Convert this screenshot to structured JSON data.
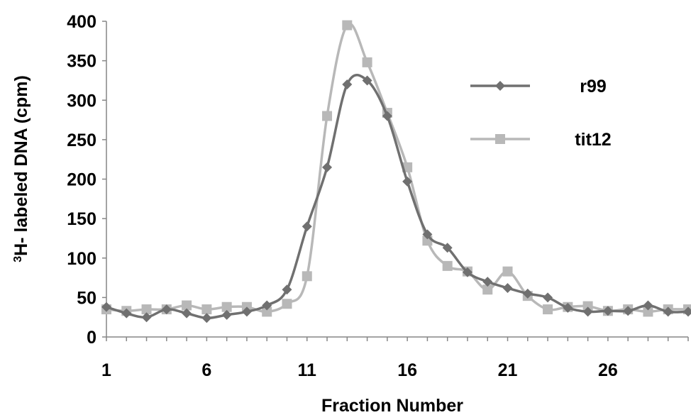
{
  "chart_data": {
    "type": "line",
    "xlabel": "Fraction Number",
    "ylabel_prefix": "3",
    "ylabel_main": "H- labeled DNA (cpm)",
    "x_ticks": [
      "1",
      "6",
      "11",
      "16",
      "21",
      "26"
    ],
    "y_ticks": [
      "0",
      "50",
      "100",
      "150",
      "200",
      "250",
      "300",
      "350",
      "400"
    ],
    "xlim": [
      1,
      30
    ],
    "ylim": [
      0,
      400
    ],
    "legend_position": "top-right",
    "series": [
      {
        "name": "r99",
        "color": "#707070",
        "marker": "diamond",
        "x": [
          1,
          2,
          3,
          4,
          5,
          6,
          7,
          8,
          9,
          10,
          11,
          12,
          13,
          14,
          15,
          16,
          17,
          18,
          19,
          20,
          21,
          22,
          23,
          24,
          25,
          26,
          27,
          28,
          29,
          30
        ],
        "y": [
          38,
          30,
          25,
          35,
          30,
          24,
          28,
          32,
          40,
          60,
          140,
          215,
          320,
          325,
          280,
          197,
          130,
          113,
          82,
          70,
          62,
          55,
          50,
          37,
          32,
          33,
          33,
          40,
          32,
          32
        ]
      },
      {
        "name": "tit12",
        "color": "#b8b8b8",
        "marker": "square",
        "x": [
          1,
          2,
          3,
          4,
          5,
          6,
          7,
          8,
          9,
          10,
          11,
          12,
          13,
          14,
          15,
          16,
          17,
          18,
          19,
          20,
          21,
          22,
          23,
          24,
          25,
          26,
          27,
          28,
          29,
          30
        ],
        "y": [
          35,
          33,
          35,
          35,
          40,
          35,
          38,
          38,
          32,
          42,
          77,
          280,
          395,
          348,
          284,
          215,
          122,
          90,
          83,
          60,
          83,
          52,
          35,
          38,
          39,
          33,
          35,
          32,
          35,
          35
        ]
      }
    ]
  }
}
